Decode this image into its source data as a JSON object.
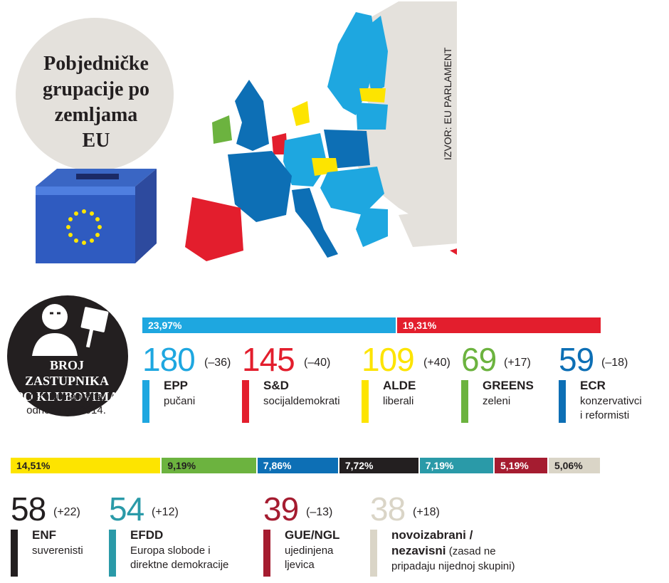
{
  "header": {
    "title_lines": [
      "Pobjedničke",
      "grupacije po",
      "zemljama",
      "EU"
    ],
    "source": "IZVOR: EU PARLAMENT"
  },
  "badge": {
    "title_lines": [
      "BROJ ZASTUPNIKA",
      "PO KLUBOVIMA"
    ],
    "note_lines": [
      "(+/-) u mandata",
      "odnosu na 2014."
    ]
  },
  "colors": {
    "epp": "#1ea7e0",
    "sd": "#e31e2d",
    "alde": "#fde400",
    "greens": "#6cb33f",
    "ecr": "#0d6fb5",
    "enf": "#231f20",
    "efdd": "#2a9aa8",
    "gue": "#a51c30",
    "ni": "#dad5c7"
  },
  "chart_data": {
    "type": "bar",
    "title": "",
    "xlabel": "",
    "ylabel": "",
    "categories": [
      "EPP",
      "S&D",
      "ALDE",
      "GREENS",
      "ECR",
      "ENF",
      "EFDD",
      "GUE/NGL",
      "novoizabrani / nezavisni"
    ],
    "series": [
      {
        "values": [
          180,
          145,
          109,
          69,
          59,
          58,
          54,
          39,
          38
        ]
      }
    ],
    "changes": [
      "(–36)",
      "(–40)",
      "(+40)",
      "(+17)",
      "(–18)",
      "(+22)",
      "(+12)",
      "(–13)",
      "(+18)"
    ],
    "shares": [
      23.97,
      19.31,
      14.51,
      9.19,
      7.86,
      7.72,
      7.19,
      5.19,
      5.06
    ],
    "share_labels": [
      "23,97%",
      "19,31%",
      "14,51%",
      "9,19%",
      "7,86%",
      "7,72%",
      "7,19%",
      "5,19%",
      "5,06%"
    ]
  },
  "groups": [
    {
      "key": "epp",
      "number": "180",
      "change": "(–36)",
      "abbr": "EPP",
      "desc_lines": [
        "pučani"
      ]
    },
    {
      "key": "sd",
      "number": "145",
      "change": "(–40)",
      "abbr": "S&D",
      "desc_lines": [
        "socijaldemokrati"
      ]
    },
    {
      "key": "alde",
      "number": "109",
      "change": "(+40)",
      "abbr": "ALDE",
      "desc_lines": [
        "liberali"
      ]
    },
    {
      "key": "greens",
      "number": "69",
      "change": "(+17)",
      "abbr": "GREENS",
      "desc_lines": [
        "zeleni"
      ]
    },
    {
      "key": "ecr",
      "number": "59",
      "change": "(–18)",
      "abbr": "ECR",
      "desc_lines": [
        "konzervativci",
        "i reformisti"
      ]
    },
    {
      "key": "enf",
      "number": "58",
      "change": "(+22)",
      "abbr": "ENF",
      "desc_lines": [
        "suverenisti"
      ]
    },
    {
      "key": "efdd",
      "number": "54",
      "change": "(+12)",
      "abbr": "EFDD",
      "desc_lines": [
        "Europa slobode i",
        "direktne demokracije"
      ]
    },
    {
      "key": "gue",
      "number": "39",
      "change": "(–13)",
      "abbr": "GUE/NGL",
      "desc_lines": [
        "ujedinjena",
        "ljevica"
      ]
    },
    {
      "key": "ni",
      "number": "38",
      "change": "(+18)",
      "abbr": "novoizabrani /",
      "abbr2": "nezavisni",
      "abbr2_tail": " (zasad ne",
      "desc_lines": [
        "pripadaju nijednoj skupini)"
      ]
    }
  ]
}
